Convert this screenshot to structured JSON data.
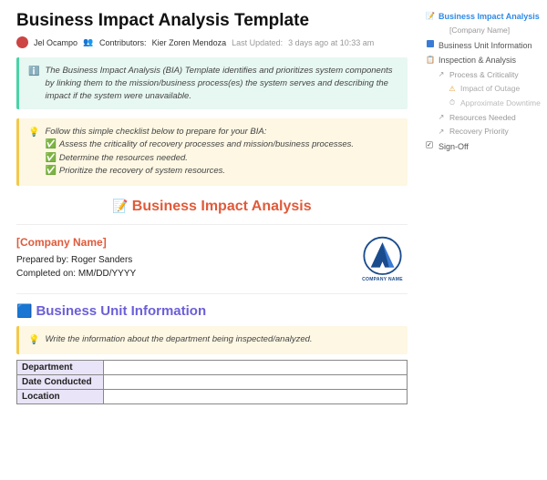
{
  "title": "Business Impact Analysis Template",
  "author": "Jel Ocampo",
  "contributors_label": "Contributors:",
  "contributors": "Kier Zoren Mendoza",
  "updated_label": "Last Updated:",
  "updated": "3 days ago at 10:33 am",
  "callout1": {
    "text": "The Business Impact Analysis (BIA) Template identifies and prioritizes system components by linking them to the mission/business process(es) the system serves and describing the impact if the system were unavailable."
  },
  "callout2": {
    "lead": "Follow this simple checklist below to prepare for your BIA:",
    "items": [
      "Assess the criticality of recovery processes and mission/business processes.",
      "Determine the resources needed.",
      "Prioritize the recovery of system resources."
    ]
  },
  "section_bia": "Business Impact Analysis",
  "company": {
    "name_placeholder": "[Company Name]",
    "prepared_by_label": "Prepared by:",
    "prepared_by": "Roger Sanders",
    "completed_label": "Completed on:",
    "completed": "MM/DD/YYYY",
    "logo_text": "COMPANY NAME"
  },
  "section_bui": "Business Unit Information",
  "callout3": "Write the information about the department being inspected/analyzed.",
  "table_rows": [
    "Department",
    "Date Conducted",
    "Location"
  ],
  "toc": [
    {
      "level": 1,
      "label": "Business Impact Analysis",
      "icon": "📝",
      "active": true,
      "color": "#2e8ae6"
    },
    {
      "level": 2,
      "label": "[Company Name]",
      "icon": "",
      "color": "#999"
    },
    {
      "level": 1,
      "label": "Business Unit Information",
      "icon": "sq",
      "sq": "#3a7bd5"
    },
    {
      "level": 1,
      "label": "Inspection & Analysis",
      "icon": "📋",
      "iconcolor": "#d98a2b"
    },
    {
      "level": 2,
      "label": "Process & Criticality",
      "icon": "↗",
      "color": "#999"
    },
    {
      "level": 3,
      "label": "Impact of Outage",
      "icon": "⚠",
      "iconcolor": "#e6a23c"
    },
    {
      "level": 3,
      "label": "Approximate Downtime",
      "icon": "⏱",
      "color": "#bbb"
    },
    {
      "level": 2,
      "label": "Resources Needed",
      "icon": "↗",
      "color": "#999"
    },
    {
      "level": 2,
      "label": "Recovery Priority",
      "icon": "↗",
      "color": "#999"
    },
    {
      "level": 1,
      "label": "Sign-Off",
      "icon": "cb"
    }
  ],
  "colors": {
    "red": "#e05a3a",
    "purple": "#6b5fd8",
    "teal_bg": "#e7f7f1",
    "yellow_bg": "#fdf7e3",
    "logo_blue": "#1a4b8c"
  }
}
